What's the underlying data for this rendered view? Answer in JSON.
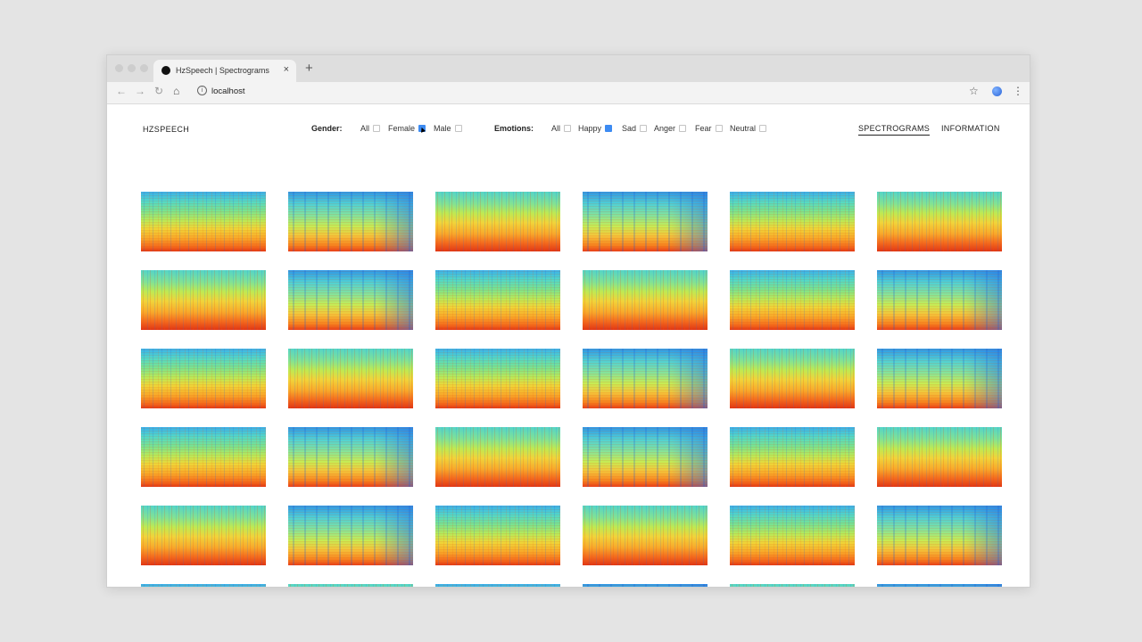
{
  "browser": {
    "tab_title": "HzSpeech | Spectrograms",
    "tab_close": "×",
    "new_tab": "+",
    "address": "localhost",
    "icons": {
      "back": "back-arrow-icon",
      "forward": "forward-arrow-icon",
      "reload": "reload-icon",
      "home": "home-icon",
      "info": "info-icon",
      "bookmark": "star-icon",
      "profile": "profile-avatar-icon",
      "menu": "more-vert-icon"
    }
  },
  "app": {
    "brand": "HZSPEECH",
    "gender": {
      "label": "Gender:",
      "options": [
        {
          "label": "All",
          "checked": false
        },
        {
          "label": "Female",
          "checked": true
        },
        {
          "label": "Male",
          "checked": false
        }
      ]
    },
    "emotions": {
      "label": "Emotions:",
      "options": [
        {
          "label": "All",
          "checked": false
        },
        {
          "label": "Happy",
          "checked": true
        },
        {
          "label": "Sad",
          "checked": false
        },
        {
          "label": "Anger",
          "checked": false
        },
        {
          "label": "Fear",
          "checked": false
        },
        {
          "label": "Neutral",
          "checked": false
        }
      ]
    },
    "nav": [
      {
        "label": "SPECTROGRAMS",
        "active": true
      },
      {
        "label": "INFORMATION",
        "active": false
      }
    ],
    "colors": {
      "checkbox_checked": "#3d8bf2",
      "spectrogram_low": "#e23a15",
      "spectrogram_mid": "#efd538",
      "spectrogram_high": "#3ab1ea"
    }
  },
  "grid": {
    "columns": 6,
    "visible_full_rows": 5,
    "partial_row": true,
    "thumbnail": "spectrogram-image"
  }
}
